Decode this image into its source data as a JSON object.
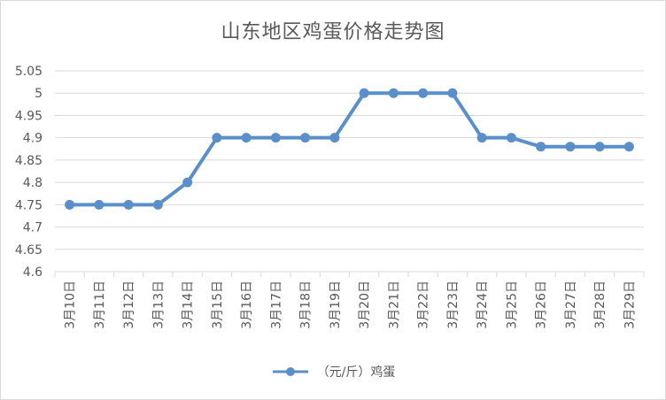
{
  "chart_data": {
    "type": "line",
    "title": "山东地区鸡蛋价格走势图",
    "categories": [
      "3月10日",
      "3月11日",
      "3月12日",
      "3月13日",
      "3月14日",
      "3月15日",
      "3月16日",
      "3月17日",
      "3月18日",
      "3月19日",
      "3月20日",
      "3月21日",
      "3月22日",
      "3月23日",
      "3月24日",
      "3月25日",
      "3月26日",
      "3月27日",
      "3月28日",
      "3月29日"
    ],
    "series": [
      {
        "name": "（元/斤）鸡蛋",
        "values": [
          4.75,
          4.75,
          4.75,
          4.75,
          4.8,
          4.9,
          4.9,
          4.9,
          4.9,
          4.9,
          5,
          5,
          5,
          5,
          4.9,
          4.9,
          4.88,
          4.88,
          4.88,
          4.88
        ]
      }
    ],
    "ylim": [
      4.6,
      5.05
    ],
    "yticks": [
      "5.05",
      "5",
      "4.95",
      "4.9",
      "4.85",
      "4.8",
      "4.75",
      "4.7",
      "4.65",
      "4.6"
    ],
    "xlabel": "",
    "ylabel": "",
    "grid": true,
    "legend_position": "bottom",
    "line_color": "#5b8fc9",
    "gridline_color": "#d9d9d9"
  }
}
